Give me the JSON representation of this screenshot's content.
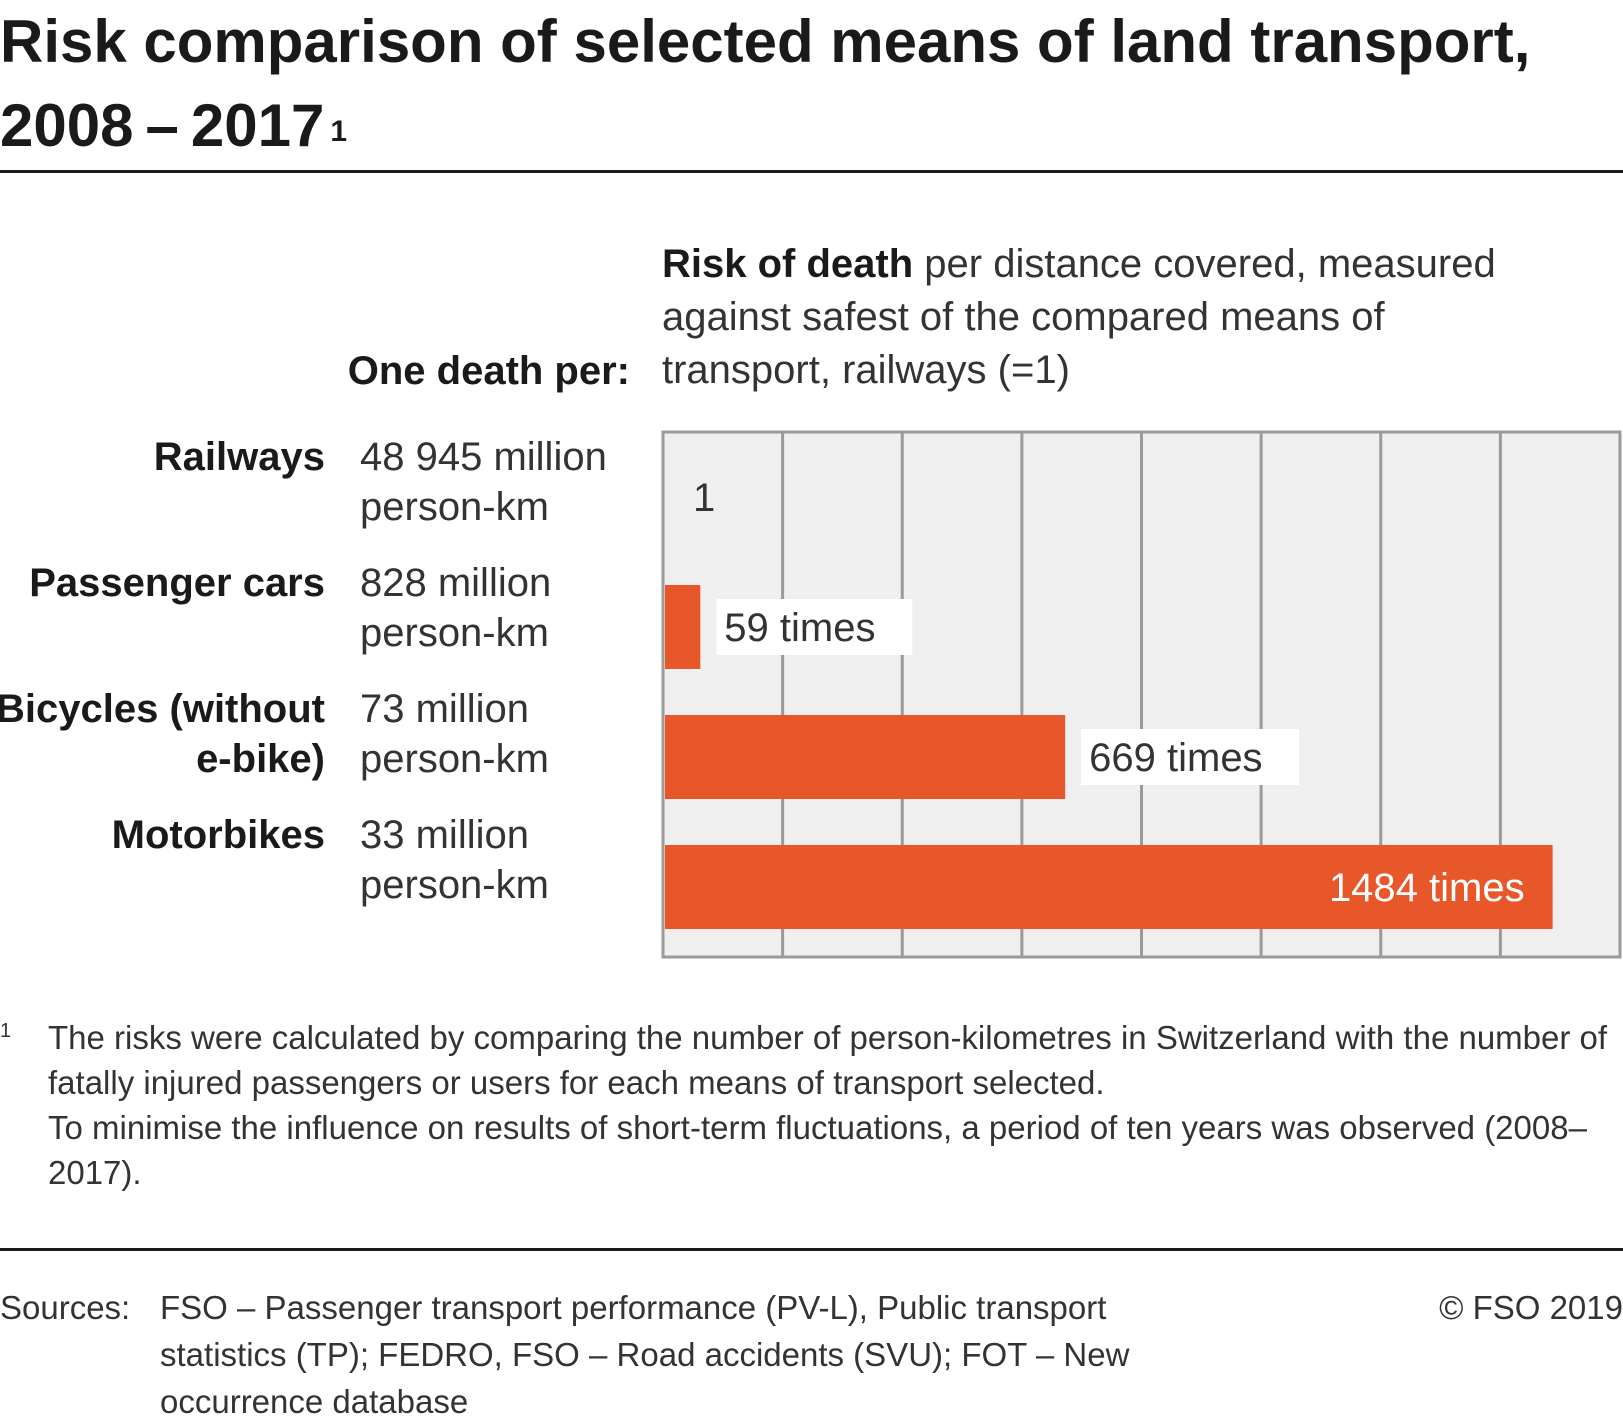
{
  "title": "Risk comparison of selected means of land transport, 2008 – 2017",
  "title_footnote_mark": "1",
  "header": {
    "left": "One death per:",
    "right_bold": "Risk of death",
    "right_rest": " per distance covered, measured against safest of the compared means of transport, railways (=1)"
  },
  "rows": [
    {
      "category": "Railways",
      "per": "48 945 million person-km"
    },
    {
      "category": "Passenger cars",
      "per": "828 million person-km"
    },
    {
      "category": "Bicycles (without e-bike)",
      "per": "73 million person-km"
    },
    {
      "category": "Motorbikes",
      "per": "33 million person-km"
    }
  ],
  "chart_data": {
    "type": "bar",
    "orientation": "horizontal",
    "categories": [
      "Railways",
      "Passenger cars",
      "Bicycles (without e-bike)",
      "Motorbikes"
    ],
    "values": [
      1,
      59,
      669,
      1484
    ],
    "data_labels": [
      "1",
      "59 times",
      "669 times",
      "1484 times"
    ],
    "xlim": [
      0,
      1600
    ],
    "grid_step": 200,
    "grid": true,
    "colors": {
      "bar": "#e8572a",
      "plot_bg": "#efefef",
      "grid": "#9a9a9a",
      "frame": "#9a9a9a"
    }
  },
  "footnote": {
    "mark": "1",
    "text_1": "The risks were calculated by comparing the number of person-kilometres in Switzerland with the number of fatally injured passengers or users for each means of transport selected.",
    "text_2": "To minimise the influence on results of short-term fluctuations, a period of ten years was observed (2008–2017)."
  },
  "sources": {
    "label": "Sources:",
    "text": "FSO – Passenger transport performance (PV-L), Public transport statistics (TP); FEDRO, FSO – Road accidents (SVU); FOT – New occurrence database",
    "copyright": "© FSO 2019"
  }
}
